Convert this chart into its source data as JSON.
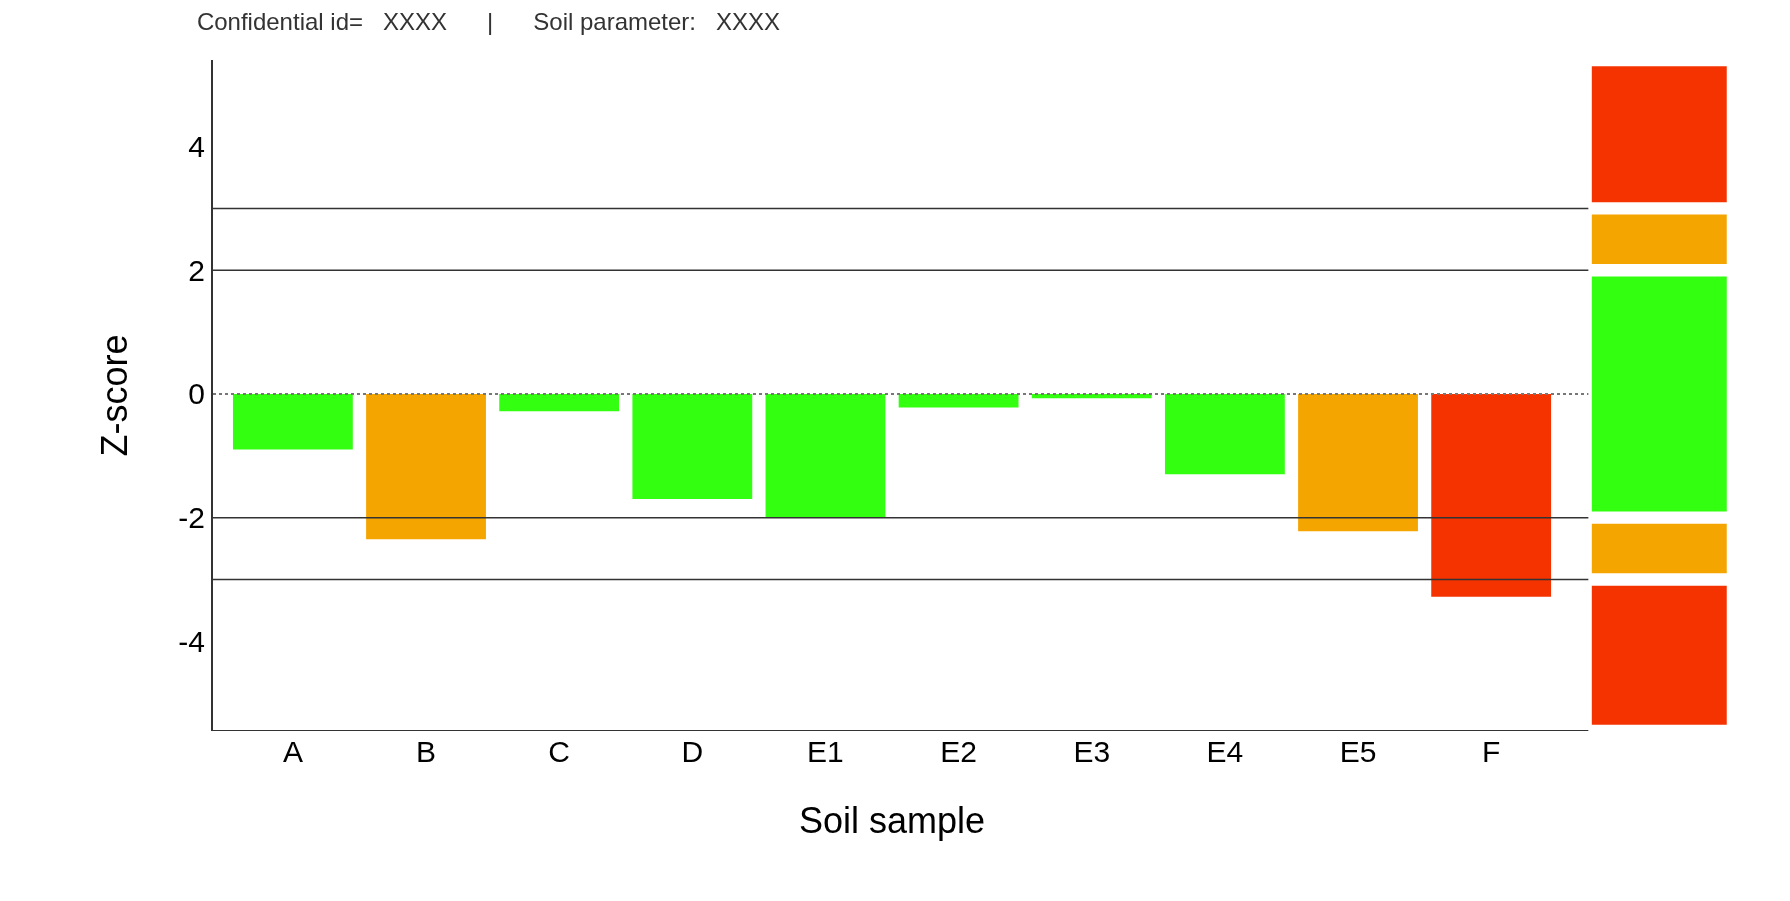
{
  "chart_data": {
    "type": "bar",
    "title": "Confidential id=   XXXX      |      Soil parameter:   XXXX",
    "xlabel": "Soil sample",
    "ylabel": "Z-score",
    "categories": [
      "A",
      "B",
      "C",
      "D",
      "E1",
      "E2",
      "E3",
      "E4",
      "E5",
      "F"
    ],
    "values": [
      -0.9,
      -2.35,
      -0.28,
      -1.7,
      -2.0,
      -0.22,
      -0.07,
      -1.3,
      -2.22,
      -3.28
    ],
    "colors": [
      "#33ff11",
      "#f5a500",
      "#33ff11",
      "#33ff11",
      "#33ff11",
      "#33ff11",
      "#33ff11",
      "#33ff11",
      "#f5a500",
      "#f53300"
    ],
    "ylim": [
      -5.45,
      5.4
    ],
    "yticks": [
      -4,
      -2,
      0,
      2,
      4
    ],
    "legend": false,
    "ref_lines": [
      {
        "axis": "y",
        "value": 3,
        "color": "#333333",
        "line_style": "solid"
      },
      {
        "axis": "y",
        "value": 2,
        "color": "#333333",
        "line_style": "solid"
      },
      {
        "axis": "y",
        "value": 0,
        "color": "#777777",
        "line_style": "dotted"
      },
      {
        "axis": "y",
        "value": -2,
        "color": "#333333",
        "line_style": "solid"
      },
      {
        "axis": "y",
        "value": -3,
        "color": "#333333",
        "line_style": "solid"
      }
    ]
  }
}
